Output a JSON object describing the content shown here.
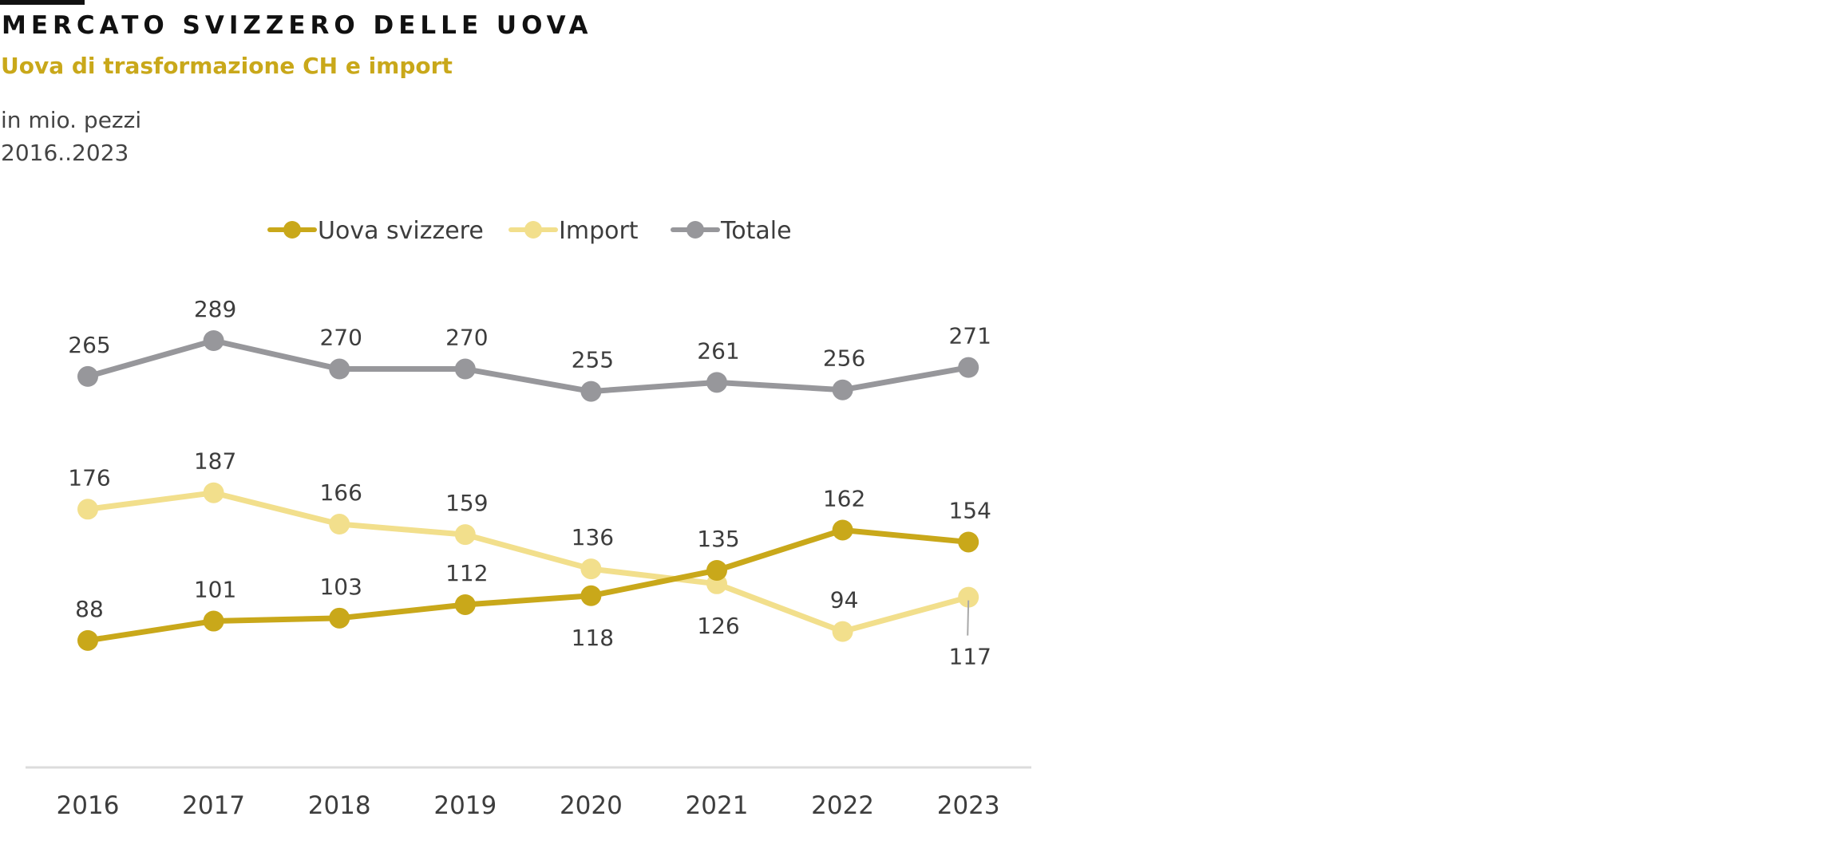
{
  "header": {
    "title": "MERCATO SVIZZERO DELLE UOVA",
    "subtitle": "Uova di trasformazione CH e import",
    "unit": "in mio. pezzi",
    "period": "2016..2023"
  },
  "chart_data": {
    "type": "line",
    "title": "MERCATO SVIZZERO DELLE UOVA",
    "subtitle": "Uova di trasformazione CH e import",
    "xlabel": "",
    "ylabel": "in mio. pezzi",
    "categories": [
      "2016",
      "2017",
      "2018",
      "2019",
      "2020",
      "2021",
      "2022",
      "2023"
    ],
    "ylim": [
      0,
      290
    ],
    "grid": false,
    "legend_position": "top-center",
    "series": [
      {
        "name": "Uova svizzere",
        "color": "#c9a81a",
        "values": [
          88,
          101,
          103,
          112,
          118,
          135,
          162,
          154
        ],
        "label_positions": [
          "above",
          "above",
          "above",
          "above",
          "below",
          "above",
          "above",
          "above"
        ]
      },
      {
        "name": "Import",
        "color": "#f2df8c",
        "values": [
          176,
          187,
          166,
          159,
          136,
          126,
          94,
          117
        ],
        "label_positions": [
          "above",
          "above",
          "above",
          "above",
          "above",
          "below",
          "above",
          "below-leader"
        ]
      },
      {
        "name": "Totale",
        "color": "#97979b",
        "values": [
          265,
          289,
          270,
          270,
          255,
          261,
          256,
          271
        ],
        "label_positions": [
          "above",
          "above",
          "above",
          "above",
          "above",
          "above",
          "above",
          "above"
        ]
      }
    ]
  }
}
